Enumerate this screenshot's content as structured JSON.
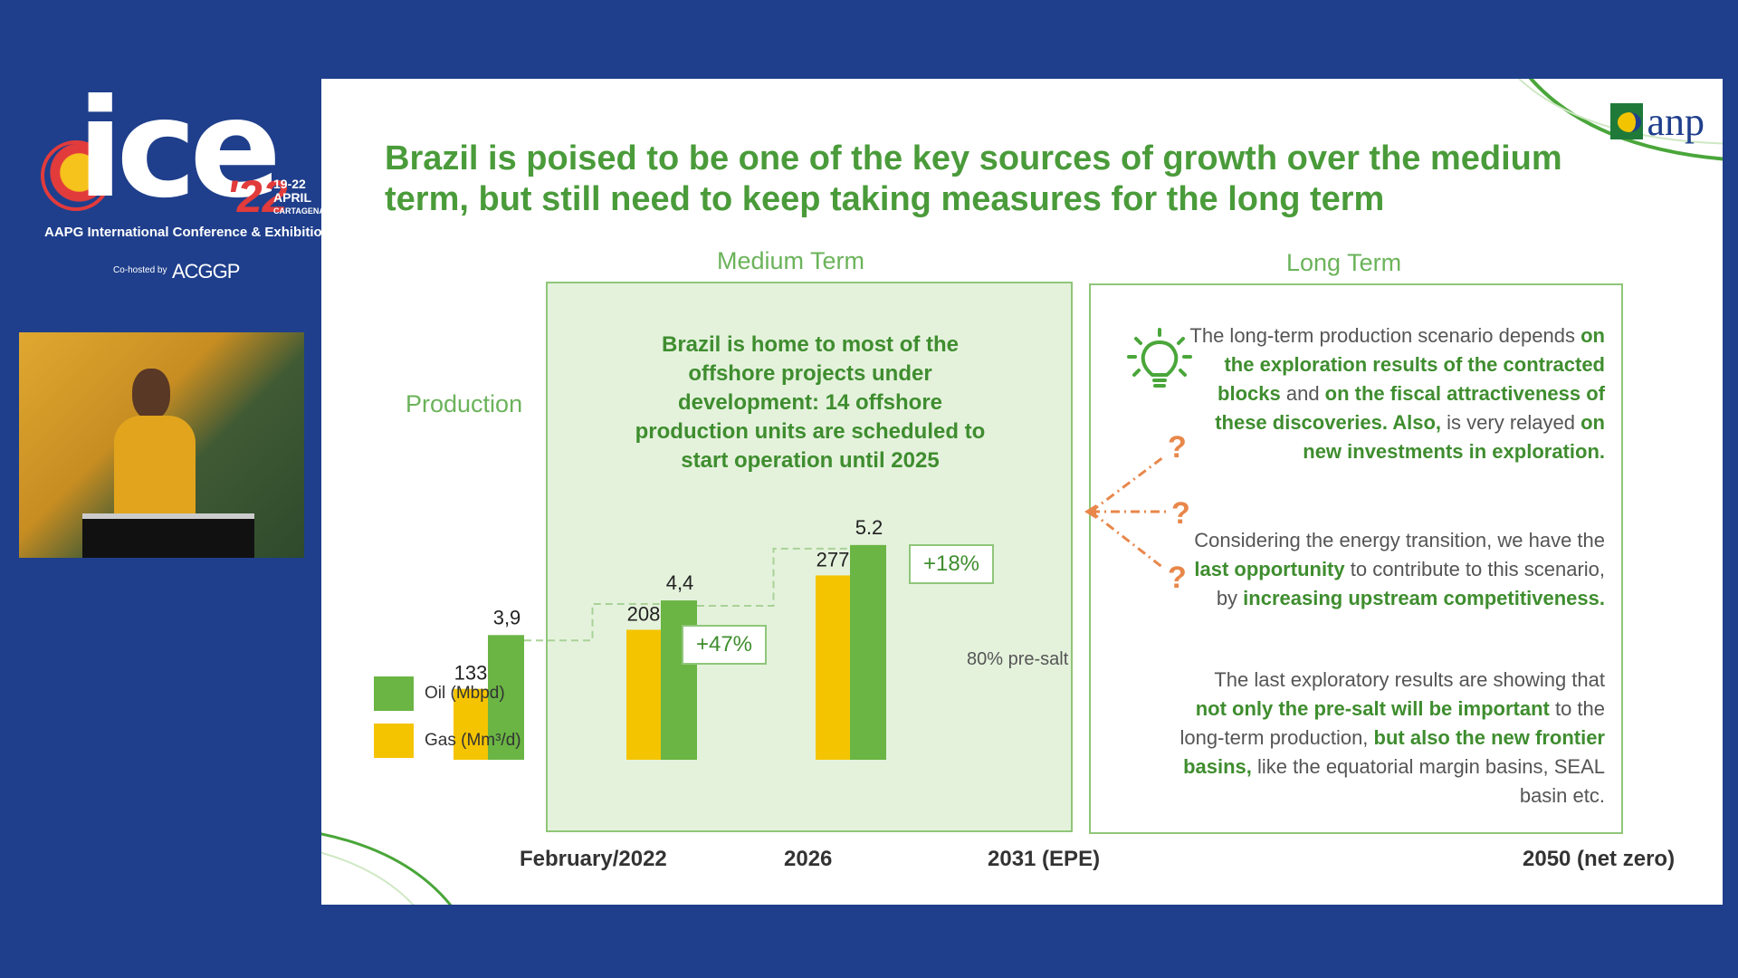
{
  "conference": {
    "brand_text": "ice",
    "year": "'22",
    "dates": "19-22",
    "month": "APRIL",
    "city": "CARTAGENA",
    "name": "AAPG International Conference & Exhibition",
    "cohost_label": "Co-hosted by",
    "cohost_name": "ACGGP"
  },
  "slide": {
    "title": "Brazil is poised to be one of the key sources of growth over the medium term, but still need to keep taking measures for the long term",
    "logo_text": "anp",
    "medium_term_label": "Medium Term",
    "long_term_label": "Long Term",
    "production_label": "Production",
    "medium_text": "Brazil is home to most of the offshore projects under development: 14 offshore production units are scheduled to start operation until 2025",
    "growth_1": "+47%",
    "growth_2": "+18%",
    "presalt_note": "80% pre-salt",
    "question_mark": "?",
    "long_term_paragraphs": [
      [
        {
          "t": "The long-term production scenario depends ",
          "b": false
        },
        {
          "t": "on the exploration results of the contracted blocks",
          "b": true
        },
        {
          "t": " and ",
          "b": false
        },
        {
          "t": "on the fiscal attractiveness of these discoveries. Also,",
          "b": true
        },
        {
          "t": " is very relayed ",
          "b": false
        },
        {
          "t": "on new investments in exploration.",
          "b": true
        }
      ],
      [
        {
          "t": "Considering the energy transition, we have the ",
          "b": false
        },
        {
          "t": "last opportunity",
          "b": true
        },
        {
          "t": " to contribute to this scenario, by ",
          "b": false
        },
        {
          "t": "increasing upstream competitiveness.",
          "b": true
        }
      ],
      [
        {
          "t": "The last exploratory results are showing that ",
          "b": false
        },
        {
          "t": "not only the pre-salt will be important",
          "b": true
        },
        {
          "t": " to the long-term production, ",
          "b": false
        },
        {
          "t": "but also the new frontier basins,",
          "b": true
        },
        {
          "t": " like the equatorial margin basins, SEAL basin etc.",
          "b": false
        }
      ]
    ]
  },
  "colors": {
    "oil": "#6ab544",
    "gas": "#f5c400",
    "accent": "#4a9b3a",
    "question": "#e8874a"
  },
  "chart_data": {
    "type": "bar",
    "categories": [
      "February/2022",
      "2026",
      "2031 (EPE)",
      "2050 (net zero)"
    ],
    "series": [
      {
        "name": "Gas (Mm³/d)",
        "values": [
          133,
          208,
          277,
          null
        ],
        "labels": [
          "133",
          "208",
          "277",
          ""
        ]
      },
      {
        "name": "Oil (Mbpd)",
        "values": [
          3.9,
          4.4,
          5.2,
          null
        ],
        "labels": [
          "3,9",
          "4,4",
          "5.2",
          ""
        ]
      }
    ],
    "legend": [
      "Oil (Mbpd)",
      "Gas (Mm³/d)"
    ],
    "ylabel": "Production",
    "legend_position": "left"
  }
}
